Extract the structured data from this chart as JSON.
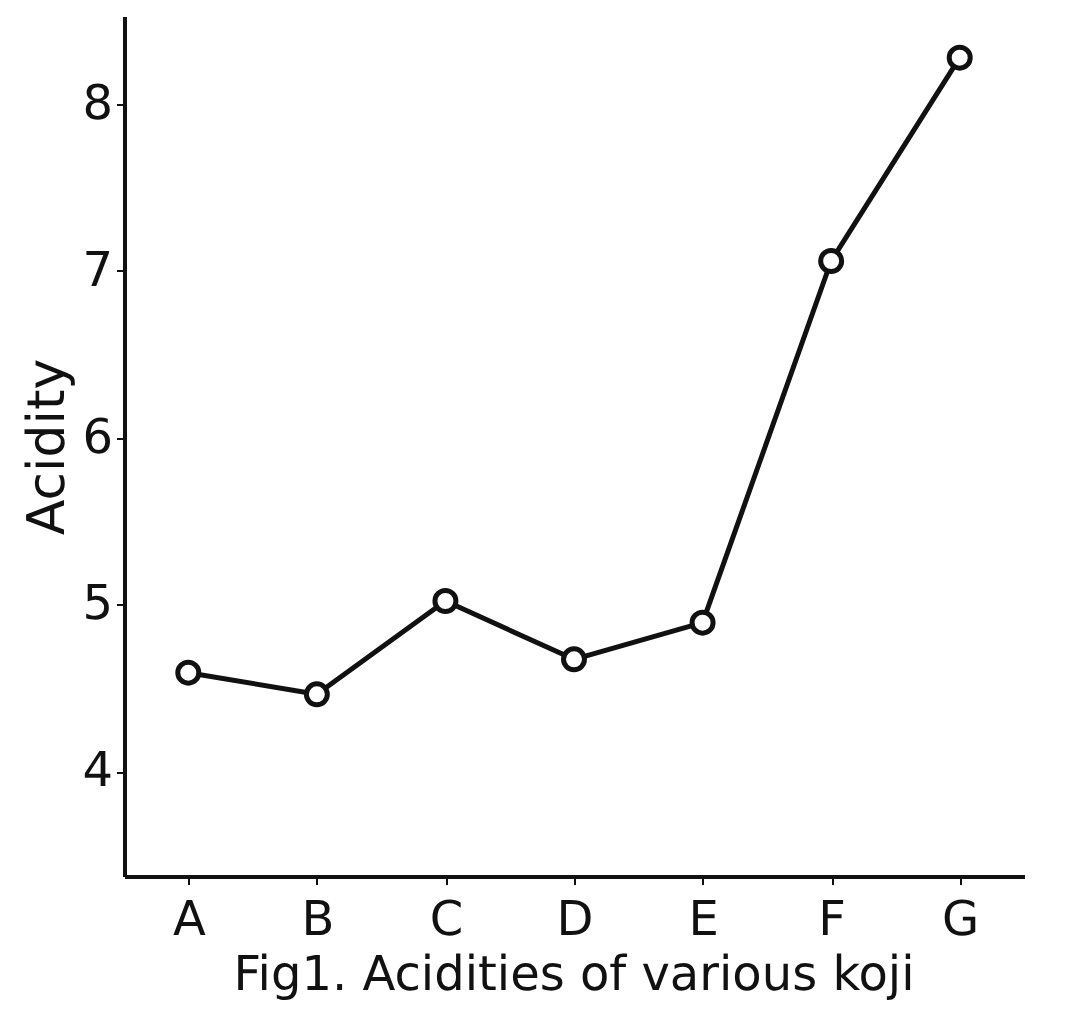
{
  "chart_data": {
    "type": "line",
    "title": "Fig1. Acidities of various koji",
    "ylabel": "Acidity",
    "categories": [
      "A",
      "B",
      "C",
      "D",
      "E",
      "F",
      "G"
    ],
    "series": [
      {
        "color": "#111111",
        "values": [
          4.59,
          4.46,
          5.02,
          4.67,
          4.89,
          7.06,
          8.28
        ]
      }
    ],
    "ylim": [
      3.37,
      8.53
    ],
    "yticks": [
      4,
      5,
      6,
      7,
      8
    ],
    "grid": false,
    "legend": false,
    "marker": "circle",
    "line_style": "solid"
  }
}
